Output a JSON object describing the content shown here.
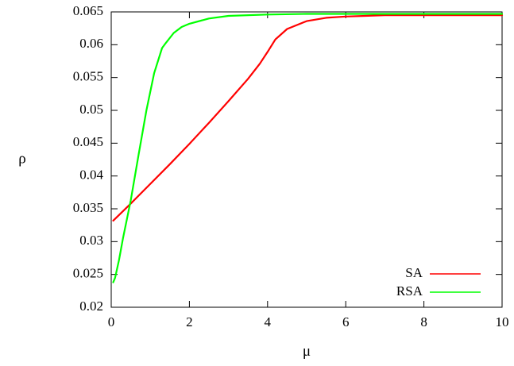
{
  "chart_data": {
    "type": "line",
    "xlabel": "μ",
    "ylabel": "ρ",
    "xlim": [
      0,
      10
    ],
    "ylim": [
      0.02,
      0.065
    ],
    "xticks": [
      0,
      2,
      4,
      6,
      8,
      10
    ],
    "xtick_labels": [
      "0",
      "2",
      "4",
      "6",
      "8",
      "10"
    ],
    "yticks": [
      0.02,
      0.025,
      0.03,
      0.035,
      0.04,
      0.045,
      0.05,
      0.055,
      0.06,
      0.065
    ],
    "ytick_labels": [
      "0.02",
      "0.025",
      "0.03",
      "0.035",
      "0.04",
      "0.045",
      "0.05",
      "0.055",
      "0.06",
      "0.065"
    ],
    "grid": false,
    "legend_position": "bottom-right",
    "series": [
      {
        "name": "SA",
        "color": "#ff0000",
        "x": [
          0.05,
          0.5,
          1.0,
          1.5,
          2.0,
          2.5,
          3.0,
          3.5,
          3.8,
          4.0,
          4.2,
          4.5,
          5.0,
          5.5,
          6.0,
          6.5,
          7.0,
          8.0,
          9.0,
          10.0
        ],
        "y": [
          0.0332,
          0.0358,
          0.0388,
          0.0418,
          0.0449,
          0.0481,
          0.0514,
          0.0548,
          0.0571,
          0.0589,
          0.0608,
          0.0624,
          0.0636,
          0.0641,
          0.0643,
          0.0644,
          0.0645,
          0.0645,
          0.0645,
          0.0645
        ]
      },
      {
        "name": "RSA",
        "color": "#00ff00",
        "x": [
          0.05,
          0.1,
          0.2,
          0.3,
          0.5,
          0.7,
          0.9,
          1.1,
          1.3,
          1.4,
          1.6,
          1.8,
          2.0,
          2.5,
          3.0,
          4.0,
          5.0,
          6.0,
          8.0,
          10.0
        ],
        "y": [
          0.0238,
          0.0245,
          0.0272,
          0.0305,
          0.0363,
          0.0432,
          0.05,
          0.0557,
          0.0595,
          0.0603,
          0.0618,
          0.0627,
          0.0632,
          0.064,
          0.0644,
          0.0646,
          0.0647,
          0.0647,
          0.0647,
          0.0647
        ]
      }
    ]
  }
}
